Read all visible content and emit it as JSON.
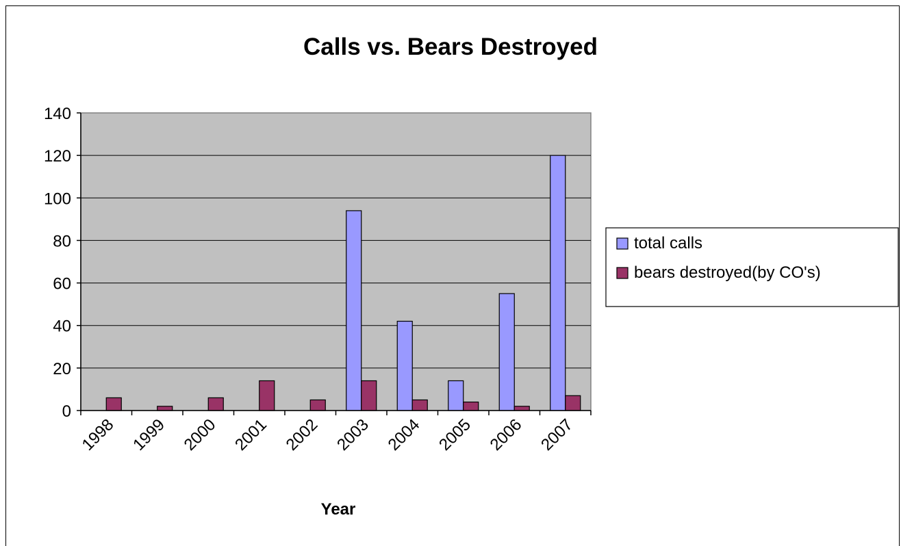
{
  "chart_data": {
    "type": "bar",
    "title": "Calls vs. Bears Destroyed",
    "xlabel": "Year",
    "ylabel": "",
    "categories": [
      "1998",
      "1999",
      "2000",
      "2001",
      "2002",
      "2003",
      "2004",
      "2005",
      "2006",
      "2007"
    ],
    "series": [
      {
        "name": "total calls",
        "values": [
          0,
          0,
          0,
          0,
          0,
          94,
          42,
          14,
          55,
          120
        ],
        "color": "#9999ff"
      },
      {
        "name": "bears destroyed(by CO's)",
        "values": [
          6,
          2,
          6,
          14,
          5,
          14,
          5,
          4,
          2,
          7
        ],
        "color": "#993366"
      }
    ],
    "ylim": [
      0,
      140
    ],
    "yticks": [
      "0",
      "20",
      "40",
      "60",
      "80",
      "100",
      "120",
      "140"
    ],
    "grid": true,
    "plot_background": "#c0c0c0",
    "legend_position": "right"
  }
}
